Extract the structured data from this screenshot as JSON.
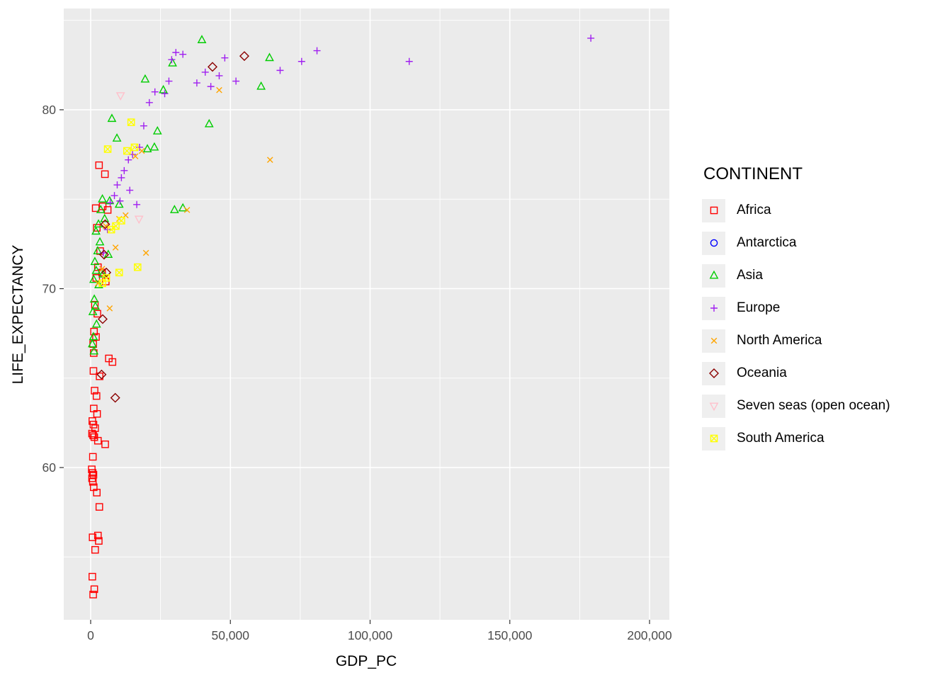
{
  "chart_data": {
    "type": "scatter",
    "title": "",
    "xlabel": "GDP_PC",
    "ylabel": "LIFE_EXPECTANCY",
    "legend_title": "CONTINENT",
    "legend_position": "right",
    "grid": true,
    "panel_bg": "#EBEBEB",
    "grid_color": "#FFFFFF",
    "tick_label_color": "#4D4D4D",
    "xlim": [
      -9630,
      207100
    ],
    "ylim": [
      51.49,
      85.66
    ],
    "x_ticks": {
      "values": [
        0,
        50000,
        100000,
        150000,
        200000
      ],
      "labels": [
        "0",
        "50,000",
        "100,000",
        "150,000",
        "200,000"
      ]
    },
    "y_ticks": {
      "values": [
        60,
        70,
        80
      ],
      "labels": [
        "60",
        "70",
        "80"
      ]
    },
    "x_minor": [
      25000,
      75000,
      125000,
      175000
    ],
    "y_minor": [
      55,
      65,
      75,
      85
    ],
    "series": [
      {
        "name": "Africa",
        "shape": "open-square",
        "color": "#FF0000",
        "points": [
          [
            3000,
            76.9
          ],
          [
            5100,
            76.4
          ],
          [
            1800,
            74.5
          ],
          [
            4300,
            74.6
          ],
          [
            6100,
            74.4
          ],
          [
            2200,
            73.4
          ],
          [
            3400,
            72.1
          ],
          [
            2600,
            71.2
          ],
          [
            4100,
            70.9
          ],
          [
            2000,
            70.6
          ],
          [
            5400,
            70.4
          ],
          [
            1500,
            69.1
          ],
          [
            2400,
            68.6
          ],
          [
            1200,
            67.6
          ],
          [
            1900,
            67.3
          ],
          [
            900,
            66.9
          ],
          [
            1100,
            66.4
          ],
          [
            6500,
            66.1
          ],
          [
            7800,
            65.9
          ],
          [
            1000,
            65.4
          ],
          [
            3200,
            65.1
          ],
          [
            1400,
            64.3
          ],
          [
            2100,
            64.0
          ],
          [
            1100,
            63.3
          ],
          [
            2300,
            63.0
          ],
          [
            600,
            62.6
          ],
          [
            1000,
            62.4
          ],
          [
            1600,
            62.2
          ],
          [
            500,
            61.9
          ],
          [
            900,
            61.8
          ],
          [
            1300,
            61.7
          ],
          [
            2600,
            61.5
          ],
          [
            5200,
            61.3
          ],
          [
            800,
            60.6
          ],
          [
            400,
            59.9
          ],
          [
            700,
            59.7
          ],
          [
            1000,
            59.6
          ],
          [
            500,
            59.4
          ],
          [
            800,
            59.2
          ],
          [
            1100,
            58.9
          ],
          [
            2200,
            58.6
          ],
          [
            3100,
            57.8
          ],
          [
            700,
            56.1
          ],
          [
            2600,
            56.2
          ],
          [
            2900,
            55.9
          ],
          [
            1600,
            55.4
          ],
          [
            600,
            53.9
          ],
          [
            1300,
            53.2
          ],
          [
            900,
            52.9
          ]
        ]
      },
      {
        "name": "Antarctica",
        "shape": "open-circle",
        "color": "#0000FF",
        "points": []
      },
      {
        "name": "Asia",
        "shape": "open-triangle",
        "color": "#00CD00",
        "points": [
          [
            39800,
            83.9
          ],
          [
            64000,
            82.9
          ],
          [
            29300,
            82.6
          ],
          [
            61000,
            81.3
          ],
          [
            19500,
            81.7
          ],
          [
            26000,
            81.1
          ],
          [
            42400,
            79.2
          ],
          [
            23900,
            78.8
          ],
          [
            9400,
            78.4
          ],
          [
            7600,
            79.5
          ],
          [
            22800,
            77.9
          ],
          [
            20300,
            77.8
          ],
          [
            30000,
            74.4
          ],
          [
            33000,
            74.5
          ],
          [
            10200,
            74.7
          ],
          [
            4200,
            75.0
          ],
          [
            6800,
            74.9
          ],
          [
            3600,
            74.4
          ],
          [
            5000,
            73.9
          ],
          [
            2800,
            73.6
          ],
          [
            1900,
            73.2
          ],
          [
            3300,
            72.6
          ],
          [
            2500,
            72.1
          ],
          [
            6300,
            71.9
          ],
          [
            1500,
            71.5
          ],
          [
            2000,
            71.0
          ],
          [
            4400,
            70.8
          ],
          [
            1100,
            70.5
          ],
          [
            2900,
            70.2
          ],
          [
            1300,
            69.4
          ],
          [
            1700,
            69.0
          ],
          [
            800,
            68.7
          ],
          [
            2100,
            68.0
          ],
          [
            1000,
            67.3
          ],
          [
            600,
            66.9
          ],
          [
            1200,
            66.5
          ]
        ]
      },
      {
        "name": "Europe",
        "shape": "plus",
        "color": "#A020F0",
        "points": [
          [
            179000,
            84.0
          ],
          [
            114000,
            82.7
          ],
          [
            81000,
            83.3
          ],
          [
            75500,
            82.7
          ],
          [
            67800,
            82.2
          ],
          [
            48000,
            82.9
          ],
          [
            52000,
            81.6
          ],
          [
            46000,
            81.9
          ],
          [
            43000,
            81.3
          ],
          [
            41000,
            82.1
          ],
          [
            38000,
            81.5
          ],
          [
            33000,
            83.1
          ],
          [
            30500,
            83.2
          ],
          [
            29000,
            82.8
          ],
          [
            28000,
            81.6
          ],
          [
            26500,
            80.9
          ],
          [
            23000,
            81.0
          ],
          [
            21000,
            80.4
          ],
          [
            19000,
            79.1
          ],
          [
            17500,
            77.9
          ],
          [
            15000,
            77.5
          ],
          [
            13500,
            77.2
          ],
          [
            12000,
            76.6
          ],
          [
            11000,
            76.2
          ],
          [
            9500,
            75.8
          ],
          [
            14000,
            75.5
          ],
          [
            8500,
            75.2
          ],
          [
            10500,
            74.9
          ],
          [
            7000,
            74.8
          ],
          [
            16500,
            74.7
          ],
          [
            6000,
            73.3
          ],
          [
            4500,
            72.0
          ]
        ]
      },
      {
        "name": "North America",
        "shape": "cross",
        "color": "#FFA500",
        "points": [
          [
            64200,
            77.2
          ],
          [
            46000,
            81.1
          ],
          [
            34500,
            74.4
          ],
          [
            19800,
            72.0
          ],
          [
            18300,
            77.7
          ],
          [
            16000,
            77.4
          ],
          [
            12500,
            74.1
          ],
          [
            10200,
            73.9
          ],
          [
            8900,
            72.3
          ],
          [
            6800,
            68.9
          ],
          [
            5400,
            73.5
          ],
          [
            4100,
            71.1
          ],
          [
            2600,
            70.3
          ]
        ]
      },
      {
        "name": "Oceania",
        "shape": "open-diamond",
        "color": "#8B0000",
        "points": [
          [
            55000,
            83.0
          ],
          [
            43600,
            82.4
          ],
          [
            5200,
            73.6
          ],
          [
            5600,
            70.9
          ],
          [
            4800,
            71.9
          ],
          [
            4300,
            68.3
          ],
          [
            3900,
            65.2
          ],
          [
            8800,
            63.9
          ]
        ]
      },
      {
        "name": "Seven seas (open ocean)",
        "shape": "open-triangle-down",
        "color": "#FFC0CB",
        "points": [
          [
            10700,
            80.8
          ],
          [
            17300,
            73.9
          ]
        ]
      },
      {
        "name": "South America",
        "shape": "boxed-x",
        "color": "#FFFF00",
        "points": [
          [
            14500,
            79.3
          ],
          [
            15700,
            77.9
          ],
          [
            13000,
            77.7
          ],
          [
            6100,
            77.8
          ],
          [
            11000,
            73.8
          ],
          [
            9000,
            73.5
          ],
          [
            7400,
            73.3
          ],
          [
            16800,
            71.2
          ],
          [
            10200,
            70.9
          ],
          [
            5600,
            70.6
          ],
          [
            4200,
            70.3
          ]
        ]
      }
    ]
  }
}
